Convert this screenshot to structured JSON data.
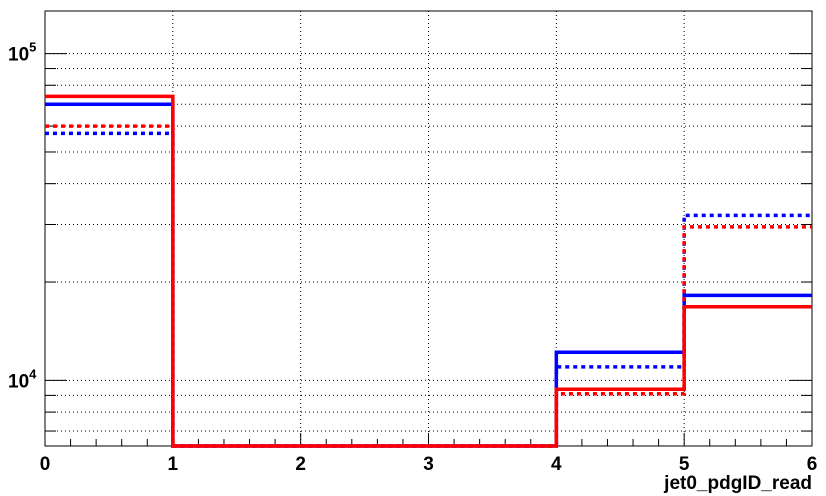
{
  "chart_data": {
    "type": "step-histogram",
    "xlabel": "jet0_pdgID_read",
    "xlim": [
      0,
      6
    ],
    "ylim": [
      6300,
      135000
    ],
    "yscale": "log",
    "grid": true,
    "x_tick_labels": [
      "0",
      "1",
      "2",
      "3",
      "4",
      "5",
      "6"
    ],
    "y_tick_labels": [
      {
        "base": "10",
        "exp": "4",
        "value": 10000
      },
      {
        "base": "10",
        "exp": "5",
        "value": 100000
      }
    ],
    "bin_edges": [
      0,
      1,
      2,
      3,
      4,
      5,
      6
    ],
    "series": [
      {
        "color": "#0000ff",
        "style": "solid",
        "values": [
          70000,
          0,
          0,
          0,
          12200,
          18200
        ]
      },
      {
        "color": "#0000ff",
        "style": "dotted",
        "values": [
          57000,
          0,
          0,
          0,
          11000,
          32000
        ]
      },
      {
        "color": "#ff0000",
        "style": "solid",
        "values": [
          74000,
          0,
          0,
          0,
          9400,
          16800
        ]
      },
      {
        "color": "#ff0000",
        "style": "dotted",
        "values": [
          60000,
          0,
          0,
          0,
          9100,
          29500
        ]
      }
    ]
  }
}
